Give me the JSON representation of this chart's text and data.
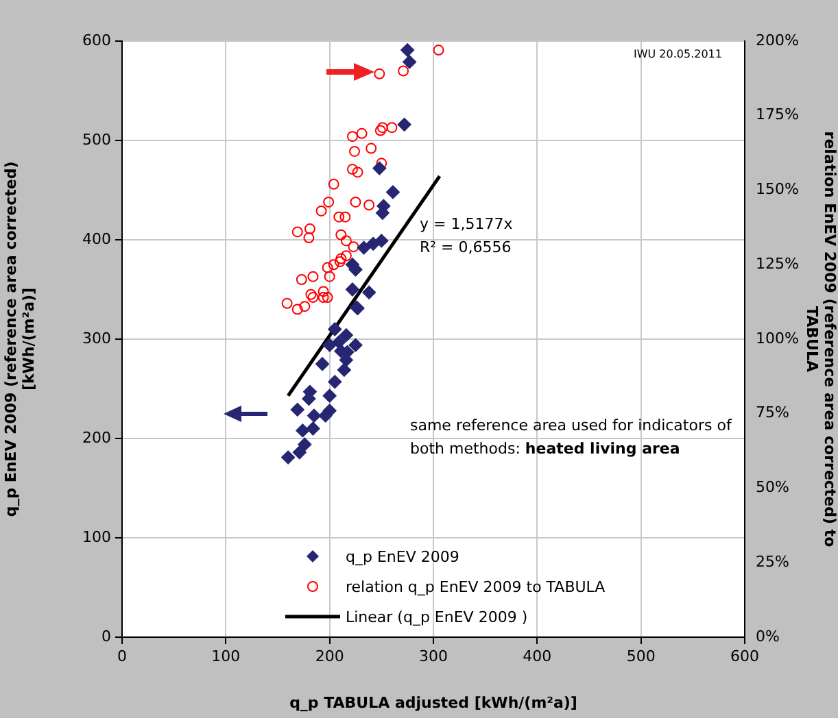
{
  "chart_data": {
    "type": "scatter",
    "xlabel": "q_p TABULA adjusted [kWh/(m²a)]",
    "ylabel": "q_p EnEV 2009 (reference area corrected) [kWh/(m²a)]",
    "y2label": "relation EnEV 2009 (reference area corrected) to TABULA",
    "xlim": [
      0,
      600
    ],
    "xticks": [
      0,
      100,
      200,
      300,
      400,
      500,
      600
    ],
    "ylim": [
      0,
      600
    ],
    "yticks": [
      0,
      100,
      200,
      300,
      400,
      500,
      600
    ],
    "y2lim": [
      0,
      200
    ],
    "y2ticks": [
      {
        "value": 0,
        "label": "0%"
      },
      {
        "value": 25,
        "label": "25%"
      },
      {
        "value": 50,
        "label": "50%"
      },
      {
        "value": 75,
        "label": "75%"
      },
      {
        "value": 100,
        "label": "100%"
      },
      {
        "value": 125,
        "label": "125%"
      },
      {
        "value": 150,
        "label": "150%"
      },
      {
        "value": 175,
        "label": "175%"
      },
      {
        "value": 200,
        "label": "200%"
      }
    ],
    "grid": true,
    "legend": "bottom",
    "annotations": [
      "IWU 20.05.2011",
      "y = 1,5177x",
      "R² = 0,6556",
      "same reference area used for indicators of both methods:",
      "heated living area"
    ],
    "series": [
      {
        "name": "q_p EnEV 2009",
        "color": "#262673",
        "marker": "diamond",
        "x": [
          275,
          277,
          272,
          248,
          261,
          252,
          251,
          250,
          242,
          233,
          222,
          225,
          222,
          238,
          226,
          227,
          205,
          216,
          209,
          200,
          225,
          211,
          217,
          216,
          193,
          214,
          205,
          181,
          200,
          180,
          169,
          200,
          196,
          185,
          174,
          184,
          176,
          171,
          160
        ],
        "values": [
          591,
          579,
          516,
          472,
          448,
          434,
          427,
          399,
          396,
          392,
          375,
          370,
          350,
          347,
          332,
          331,
          310,
          304,
          297,
          294,
          294,
          288,
          287,
          279,
          275,
          269,
          257,
          247,
          243,
          240,
          229,
          228,
          223,
          223,
          208,
          210,
          194,
          186,
          181
        ]
      },
      {
        "name": "relation q_p EnEV 2009 to TABULA",
        "color": "#ff0000",
        "marker": "circle",
        "axis": "y2",
        "x": [
          305,
          271,
          248,
          251,
          260,
          249,
          231,
          222,
          240,
          224,
          250,
          222,
          227,
          204,
          199,
          225,
          238,
          192,
          209,
          215,
          181,
          169,
          211,
          180,
          216,
          223,
          216,
          211,
          210,
          204,
          198,
          200,
          184,
          173,
          194,
          182,
          198,
          184,
          194,
          159,
          176,
          169
        ],
        "values": [
          197,
          190,
          189,
          171,
          171,
          170,
          169,
          168,
          164,
          163,
          159,
          157,
          156,
          152,
          146,
          146,
          145,
          143,
          141,
          141,
          137,
          136,
          135,
          134,
          133,
          131,
          128,
          127,
          126,
          125,
          124,
          121,
          121,
          120,
          116,
          115,
          114,
          114,
          114,
          112,
          111,
          110
        ]
      },
      {
        "name": "Linear (q_p EnEV 2009 )",
        "type": "line",
        "color": "#000000",
        "marker": "none",
        "x": [
          160,
          306
        ],
        "values": [
          243,
          464
        ]
      }
    ]
  }
}
